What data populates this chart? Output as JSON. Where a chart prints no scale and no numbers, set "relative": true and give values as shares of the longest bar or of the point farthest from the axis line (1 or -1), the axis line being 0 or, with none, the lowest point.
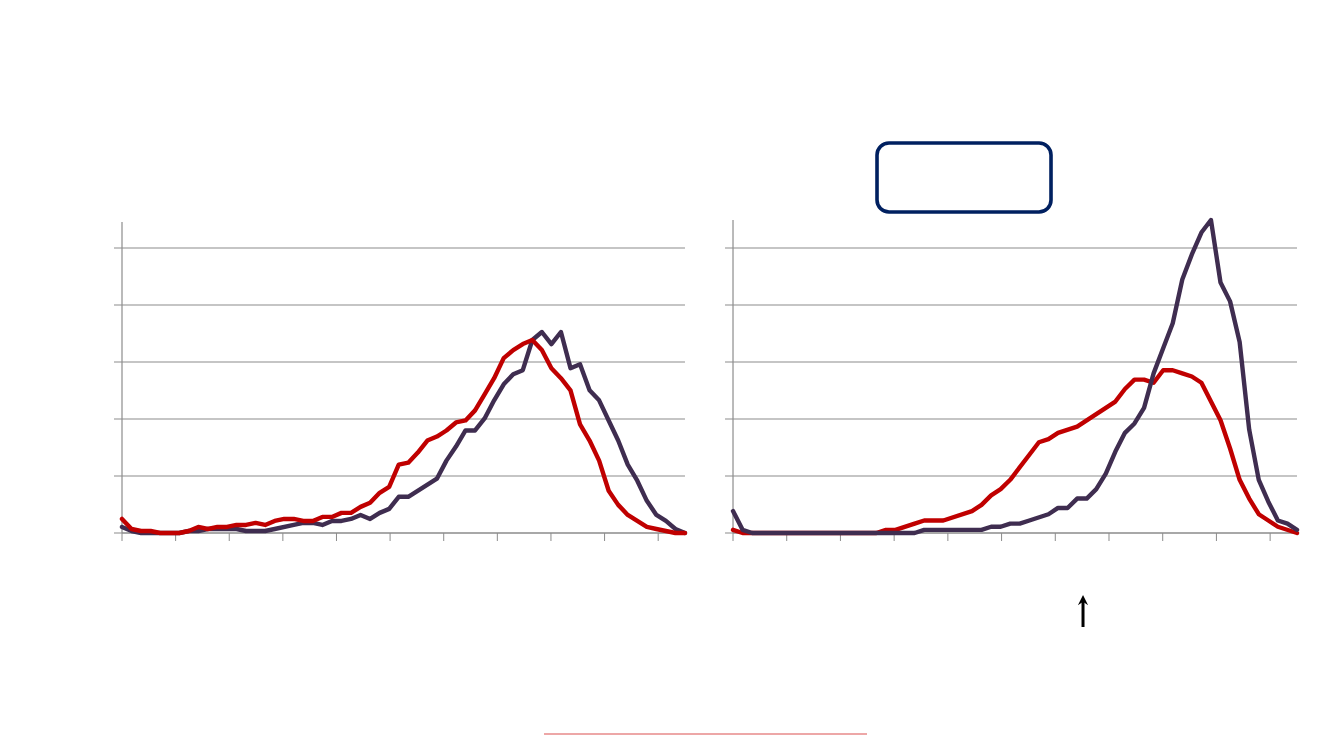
{
  "chart_data": [
    {
      "type": "line",
      "relative": true,
      "grid": "y",
      "categories": [
        null,
        null,
        null,
        null,
        null,
        null,
        null,
        null,
        null,
        null,
        null,
        null,
        null,
        null,
        null,
        null,
        null,
        null,
        null,
        null,
        null,
        null,
        null,
        null,
        null,
        null,
        null,
        null,
        null,
        null,
        null,
        null,
        null,
        null,
        null,
        null,
        null,
        null,
        null,
        null,
        null,
        null,
        null,
        null,
        null,
        null,
        null,
        null,
        null,
        null,
        null,
        null,
        null,
        null,
        null,
        null,
        null,
        null,
        null,
        null
      ],
      "series": [
        {
          "color": "#3f2d50",
          "values": [
            0.03,
            0.01,
            0,
            0,
            0,
            0,
            0,
            0.01,
            0.01,
            0.02,
            0.02,
            0.02,
            0.02,
            0.01,
            0.01,
            0.01,
            0.02,
            0.03,
            0.04,
            0.05,
            0.05,
            0.04,
            0.06,
            0.06,
            0.07,
            0.09,
            0.07,
            0.1,
            0.12,
            0.18,
            0.18,
            0.21,
            0.24,
            0.27,
            0.36,
            0.43,
            0.51,
            0.51,
            0.57,
            0.66,
            0.74,
            0.79,
            0.81,
            0.96,
            1,
            0.94,
            1,
            0.82,
            0.84,
            0.71,
            0.66,
            0.56,
            0.46,
            0.34,
            0.26,
            0.16,
            0.09,
            0.06,
            0.02,
            0
          ]
        },
        {
          "color": "#c00000",
          "values": [
            0.07,
            0.02,
            0.01,
            0.01,
            0,
            0,
            0,
            0.01,
            0.03,
            0.02,
            0.03,
            0.03,
            0.04,
            0.04,
            0.05,
            0.04,
            0.06,
            0.07,
            0.07,
            0.06,
            0.06,
            0.08,
            0.08,
            0.1,
            0.1,
            0.13,
            0.15,
            0.2,
            0.23,
            0.34,
            0.35,
            0.4,
            0.46,
            0.48,
            0.51,
            0.55,
            0.56,
            0.61,
            0.69,
            0.77,
            0.87,
            0.91,
            0.94,
            0.96,
            0.91,
            0.82,
            0.77,
            0.71,
            0.54,
            0.46,
            0.36,
            0.21,
            0.14,
            0.09,
            0.06,
            0.03,
            0.02,
            0.01,
            0,
            0
          ]
        }
      ]
    },
    {
      "type": "line",
      "relative": true,
      "grid": "y",
      "categories": [
        null,
        null,
        null,
        null,
        null,
        null,
        null,
        null,
        null,
        null,
        null,
        null,
        null,
        null,
        null,
        null,
        null,
        null,
        null,
        null,
        null,
        null,
        null,
        null,
        null,
        null,
        null,
        null,
        null,
        null,
        null,
        null,
        null,
        null,
        null,
        null,
        null,
        null,
        null,
        null,
        null,
        null,
        null,
        null,
        null,
        null,
        null,
        null,
        null,
        null,
        null,
        null,
        null,
        null,
        null,
        null,
        null,
        null,
        null,
        null
      ],
      "series": [
        {
          "color": "#c00000",
          "values": [
            0.01,
            0,
            0,
            0,
            0,
            0,
            0,
            0,
            0,
            0,
            0,
            0,
            0,
            0,
            0,
            0,
            0.01,
            0.01,
            0.02,
            0.03,
            0.04,
            0.04,
            0.04,
            0.05,
            0.06,
            0.07,
            0.09,
            0.12,
            0.14,
            0.17,
            0.21,
            0.25,
            0.29,
            0.3,
            0.32,
            0.33,
            0.34,
            0.36,
            0.38,
            0.4,
            0.42,
            0.46,
            0.49,
            0.49,
            0.48,
            0.52,
            0.52,
            0.51,
            0.5,
            0.48,
            0.42,
            0.36,
            0.27,
            0.17,
            0.11,
            0.06,
            0.04,
            0.02,
            0.01,
            0
          ]
        },
        {
          "color": "#3f2d50",
          "values": [
            0.07,
            0.01,
            0,
            0,
            0,
            0,
            0,
            0,
            0,
            0,
            0,
            0,
            0,
            0,
            0,
            0,
            0,
            0,
            0,
            0,
            0.01,
            0.01,
            0.01,
            0.01,
            0.01,
            0.01,
            0.01,
            0.02,
            0.02,
            0.03,
            0.03,
            0.04,
            0.05,
            0.06,
            0.08,
            0.08,
            0.11,
            0.11,
            0.14,
            0.19,
            0.26,
            0.32,
            0.35,
            0.4,
            0.51,
            0.59,
            0.67,
            0.81,
            0.89,
            0.96,
            1,
            0.8,
            0.74,
            0.61,
            0.33,
            0.17,
            0.1,
            0.04,
            0.03,
            0.01
          ]
        }
      ]
    }
  ]
}
